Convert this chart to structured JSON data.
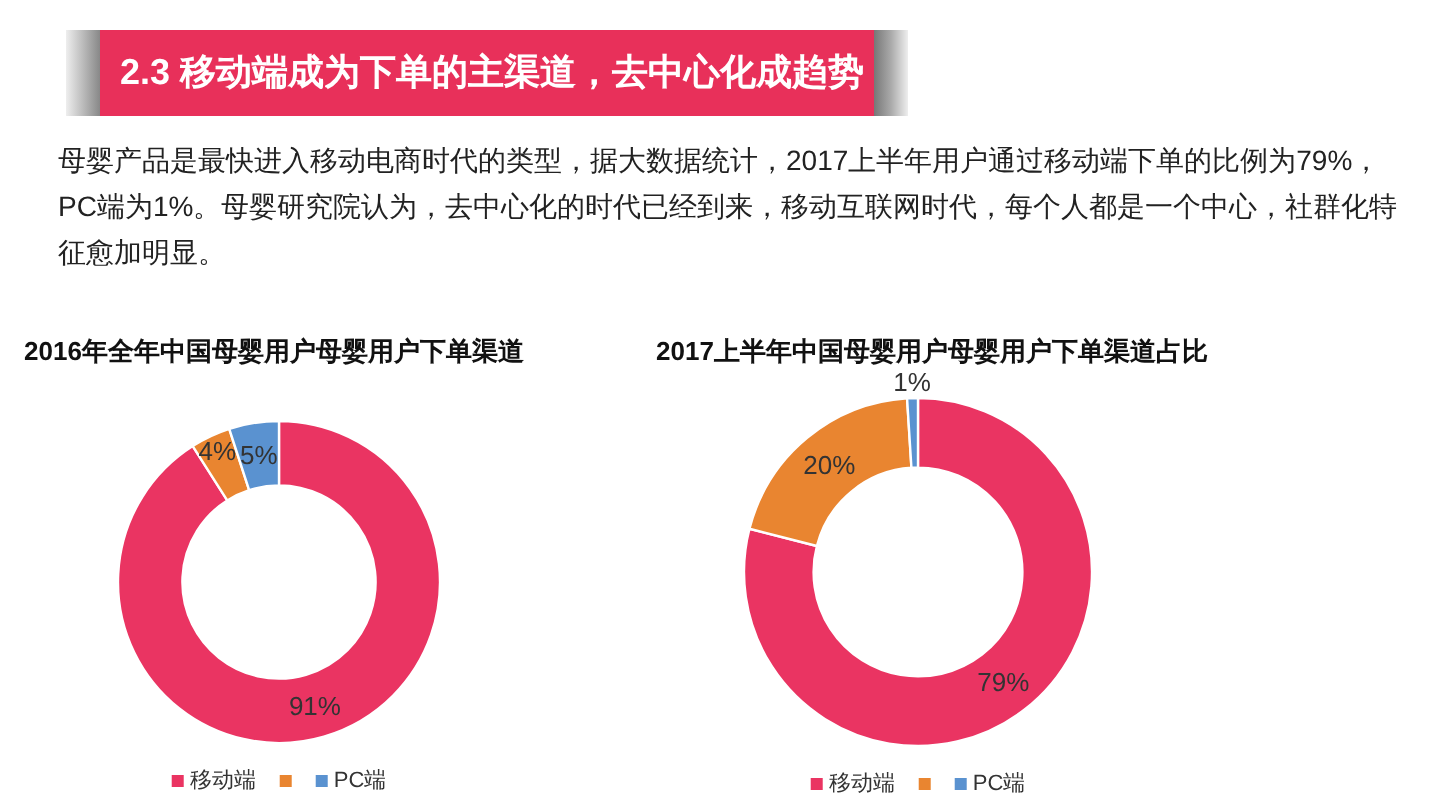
{
  "chart_data": [
    {
      "type": "other",
      "title": "2.3 移动端成为下单的主渠道，去中心化成趋势",
      "subtitle": "母婴产品是最快进入移动电商时代的类型，据大数据统计，2017上半年用户通过移动端下单的比例为79%，PC端为1%。母婴研究院认为，去中心化的时代已经到来，移动互联网时代，每个人都是一个中心，社群化特征愈加明显。"
    },
    {
      "type": "donut",
      "title": "2016年全年中国母婴用户母婴用户下单渠道",
      "categories": [
        "移动端",
        null,
        "PC端"
      ],
      "values": [
        91,
        4,
        5
      ],
      "colors": [
        "#ea3462",
        "#e98530",
        "#5a92d0"
      ],
      "value_labels": [
        "91%",
        "4%",
        "5%"
      ],
      "legend": "bottom"
    },
    {
      "type": "donut",
      "title": "2017上半年中国母婴用户母婴用户下单渠道占比",
      "categories": [
        "移动端",
        null,
        "PC端"
      ],
      "values": [
        79,
        20,
        1
      ],
      "colors": [
        "#ea3462",
        "#e98530",
        "#5a92d0"
      ],
      "value_labels": [
        "79%",
        "20%",
        "1%"
      ],
      "legend": "bottom"
    }
  ]
}
